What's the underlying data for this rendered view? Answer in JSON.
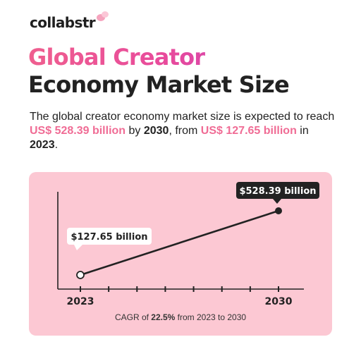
{
  "brand": {
    "name": "collabstr"
  },
  "headline": {
    "line1": "Global Creator",
    "line2": "Economy Market Size"
  },
  "summary": {
    "t1": "The global creator economy market size is expected to reach ",
    "v2030": "US$ 528.39 billion",
    "t2": " by ",
    "y2030": "2030",
    "t3": ", from ",
    "v2023": "US$ 127.65 billion",
    "t4": " in ",
    "y2023": "2023",
    "t5": "."
  },
  "caption": {
    "pre": "CAGR of ",
    "rate": "22.5%",
    "post": " from 2023 to 2030"
  },
  "colors": {
    "accent": "#f06c95",
    "gradient_end": "#b63ec8",
    "card": "#fcc8d3",
    "ink": "#222222"
  },
  "chart_data": {
    "type": "line",
    "x": [
      2023,
      2030
    ],
    "xlim": [
      2023,
      2030
    ],
    "tick_labels": [
      "2023",
      "2030"
    ],
    "series": [
      {
        "values": [
          127.65,
          528.39
        ]
      }
    ],
    "ylim": [
      100,
      600
    ],
    "data_labels": [
      "$127.65 billion",
      "$528.39 billion"
    ],
    "title": "",
    "xlabel": "",
    "ylabel": ""
  }
}
